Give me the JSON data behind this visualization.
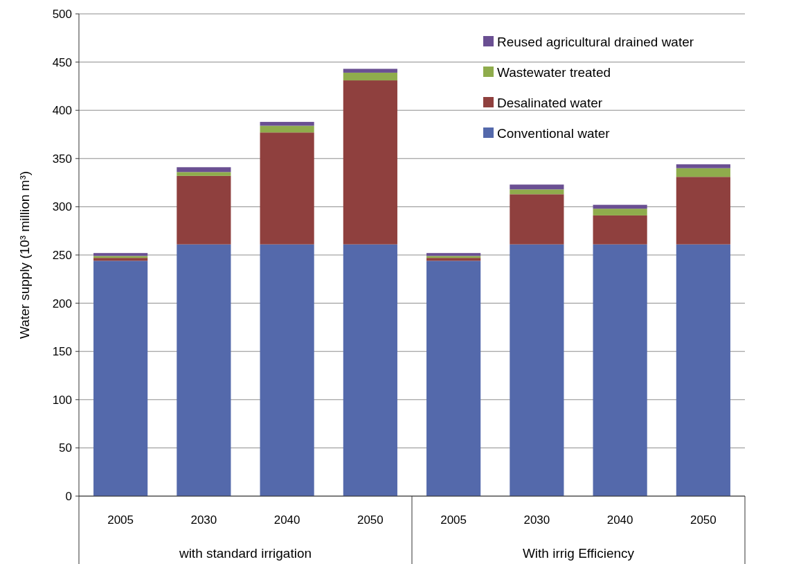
{
  "chart_data": {
    "type": "bar",
    "stacked": true,
    "ylabel": "Water supply (10³ million m³)",
    "categories": [
      "2005",
      "2030",
      "2040",
      "2050",
      "2005",
      "2030",
      "2040",
      "2050"
    ],
    "series": [
      {
        "name": "Conventional water",
        "color": "#5469ab",
        "values": [
          244,
          261,
          261,
          261,
          244,
          261,
          261,
          261
        ]
      },
      {
        "name": "Desalinated water",
        "color": "#8f403e",
        "values": [
          3,
          71,
          116,
          170,
          3,
          52,
          30,
          70
        ]
      },
      {
        "name": "Wastewater treated",
        "color": "#8fac4c",
        "values": [
          2,
          4,
          7,
          8,
          2,
          5,
          7,
          9
        ]
      },
      {
        "name": "Reused agricultural drained water",
        "color": "#6a4f92",
        "values": [
          3,
          5,
          4,
          4,
          3,
          5,
          4,
          4
        ]
      }
    ],
    "ylim": [
      0,
      500
    ],
    "yticks": [
      0,
      50,
      100,
      150,
      200,
      250,
      300,
      350,
      400,
      450,
      500
    ],
    "grid": "y",
    "legend": "top right",
    "annotations": [
      "with standard irrigation",
      "With irrig Efficiency"
    ]
  }
}
